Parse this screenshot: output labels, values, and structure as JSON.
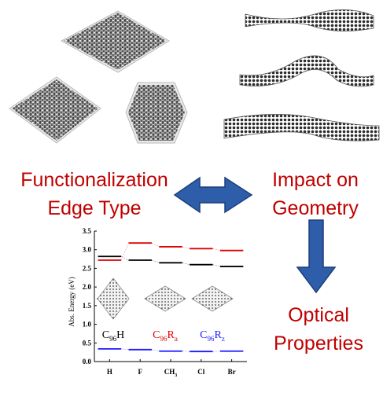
{
  "labels": {
    "left_line1": "Functionalization",
    "left_line2": "Edge Type",
    "right_line1": "Impact on",
    "right_line2": "Geometry",
    "bottom_line1": "Optical",
    "bottom_line2": "Properties"
  },
  "colors": {
    "text_red": "#c00000",
    "arrow_blue": "#2e5eaa",
    "series_black": "#000000",
    "series_red": "#e00000",
    "series_blue": "#1a1aff"
  },
  "chart_data": {
    "type": "line",
    "ylabel": "Abs. Energy (eV)",
    "categories": [
      "H",
      "F",
      "CH3",
      "Cl",
      "Br"
    ],
    "ylim": [
      0.0,
      3.5
    ],
    "yticks": [
      "0.0",
      "0.5",
      "1.0",
      "1.5",
      "2.0",
      "2.5",
      "3.0",
      "3.5"
    ],
    "series": [
      {
        "name": "C96H",
        "color": "#000000",
        "values": [
          2.82,
          2.72,
          2.65,
          2.6,
          2.55
        ]
      },
      {
        "name": "C96Ra",
        "color": "#e00000",
        "values": [
          2.72,
          3.18,
          3.08,
          3.03,
          2.98
        ]
      },
      {
        "name": "C96Rz",
        "color": "#1a1aff",
        "values": [
          0.34,
          0.32,
          0.28,
          0.27,
          0.28
        ]
      }
    ],
    "legend": [
      {
        "base": "C",
        "sub": "96",
        "tail": "H",
        "tail_sub": "",
        "color": "#000000"
      },
      {
        "base": "C",
        "sub": "96",
        "tail": "R",
        "tail_sub": "a",
        "color": "#e00000"
      },
      {
        "base": "C",
        "sub": "96",
        "tail": "R",
        "tail_sub": "z",
        "color": "#1a1aff"
      }
    ]
  }
}
